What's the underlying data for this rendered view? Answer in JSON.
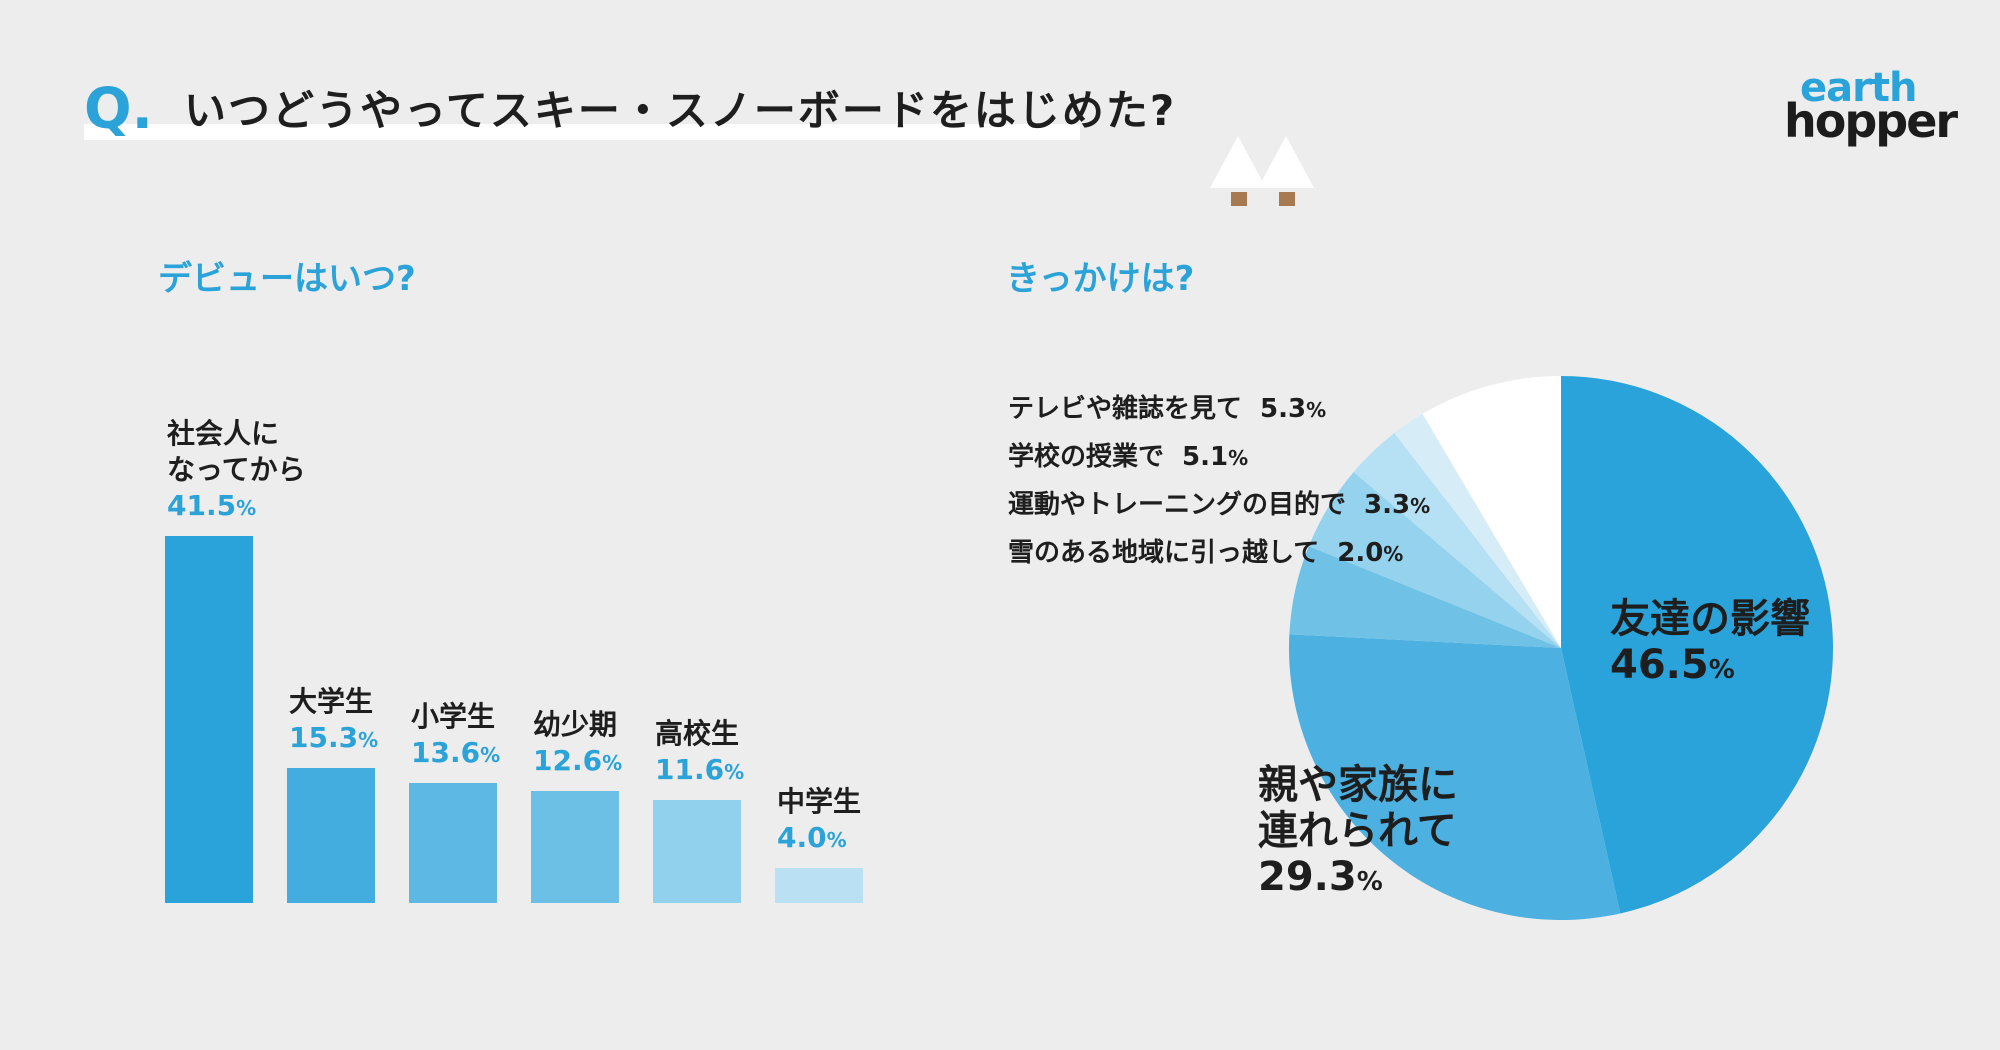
{
  "header": {
    "q_mark": "Q.",
    "title": "いつどうやってスキー・スノーボードをはじめた?"
  },
  "logo": {
    "line1": "earth",
    "line2": "hopper"
  },
  "colors": {
    "accent": "#2ba3d9",
    "bars": [
      "#29a3da",
      "#43ade0",
      "#5db9e3",
      "#6cc0e6",
      "#92d1ed",
      "#b9e1f3"
    ],
    "pie": [
      "#29a3da",
      "#4cb1e1",
      "#6fc1e6",
      "#95d2ee",
      "#b6e0f3",
      "#d6edf8",
      "#ffffff"
    ]
  },
  "bar_section": {
    "title": "デビューはいつ?"
  },
  "pie_section": {
    "title": "きっかけは?"
  },
  "percent_sign": "%",
  "chart_data": [
    {
      "type": "bar",
      "categories": [
        "社会人になってから",
        "大学生",
        "小学生",
        "幼少期",
        "高校生",
        "中学生"
      ],
      "label_lines": [
        [
          "社会人に",
          "なってから"
        ],
        [
          "大学生"
        ],
        [
          "小学生"
        ],
        [
          "幼少期"
        ],
        [
          "高校生"
        ],
        [
          "中学生"
        ]
      ],
      "values": [
        41.5,
        15.3,
        13.6,
        12.6,
        11.6,
        4.0
      ],
      "value_labels": [
        "41.5",
        "15.3",
        "13.6",
        "12.6",
        "11.6",
        "4.0"
      ],
      "unit": "%",
      "title": "デビューはいつ?"
    },
    {
      "type": "pie",
      "categories": [
        "友達の影響",
        "親や家族に連れられて",
        "テレビや雑誌を見て",
        "学校の授業で",
        "運動やトレーニングの目的で",
        "雪のある地域に引っ越して",
        ""
      ],
      "values": [
        46.5,
        29.3,
        5.3,
        5.1,
        3.3,
        2.0,
        8.5
      ],
      "value_labels": [
        "46.5",
        "29.3",
        "5.3",
        "5.1",
        "3.3",
        "2.0",
        ""
      ],
      "big_label_lines": [
        [
          "友達の影響"
        ],
        [
          "親や家族に",
          "連れられて"
        ]
      ],
      "unit": "%",
      "title": "きっかけは?"
    }
  ]
}
